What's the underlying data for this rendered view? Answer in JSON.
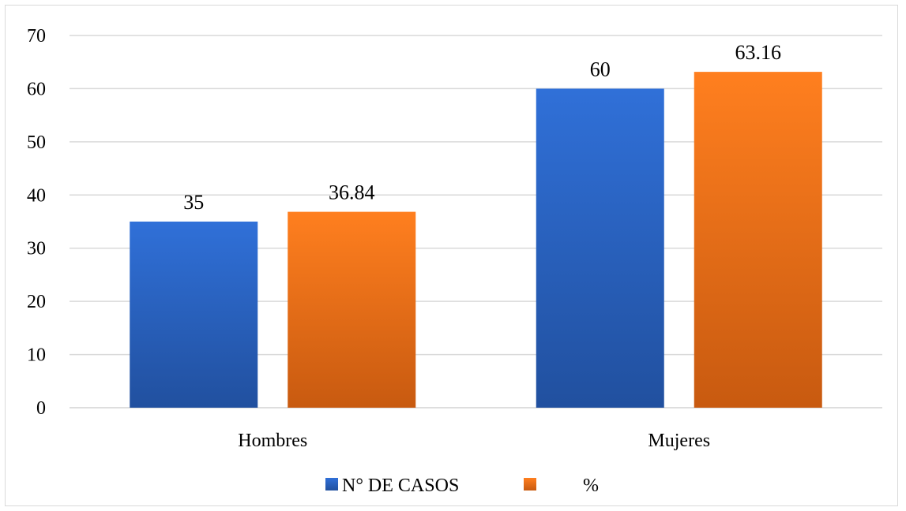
{
  "chart_data": {
    "type": "bar",
    "categories": [
      "Hombres",
      "Mujeres"
    ],
    "series": [
      {
        "name": "N° DE CASOS",
        "values": [
          35,
          60
        ],
        "labels": [
          "35",
          "60"
        ],
        "color": "#2f6bd1"
      },
      {
        "name": "%",
        "values": [
          36.84,
          63.16
        ],
        "labels": [
          "36.84",
          "63.16"
        ],
        "color": "#f57a1c"
      }
    ],
    "title": "",
    "xlabel": "",
    "ylabel": "",
    "ylim": [
      0,
      70
    ],
    "yticks": [
      "0",
      "10",
      "20",
      "30",
      "40",
      "50",
      "60",
      "70"
    ],
    "grid": true,
    "legend_position": "bottom"
  },
  "colors": {
    "series_1_top": "#3070d8",
    "series_1_bottom": "#21509f",
    "series_2_top": "#ff7f1f",
    "series_2_bottom": "#c85a10",
    "grid": "#d9d9d9",
    "frame": "#d9d9d9"
  }
}
